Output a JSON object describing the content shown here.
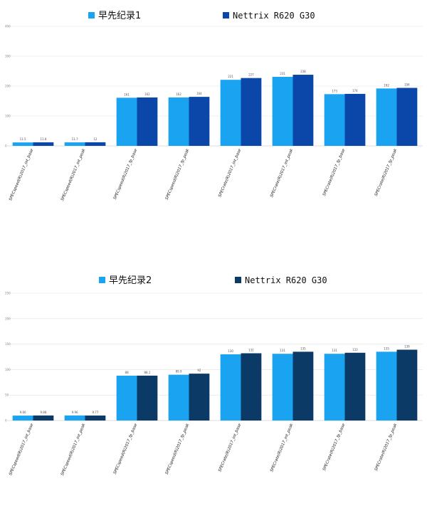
{
  "charts": [
    {
      "type": "bar",
      "categories": [
        "SPECspeed(R)2017_int_base",
        "SPECspeed(R)2017_int_peak",
        "SPECspeed(R)2017_fp_base",
        "SPECspeed(R)2017_fp_peak",
        "SPECrate(R)2017_int_base",
        "SPECrate(R)2017_int_peak",
        "SPECrate(R)2017_fp_base",
        "SPECrate(R)2017_fp_peak"
      ],
      "series": [
        {
          "name": "早先纪录1",
          "color": "#1aa3f0",
          "values": [
            11.5,
            11.7,
            161,
            162,
            221,
            231,
            173,
            192
          ],
          "labels": [
            "11.5",
            "11.7",
            "161",
            "162",
            "221",
            "231",
            "173",
            "192"
          ]
        },
        {
          "name": "Nettrix R620 G30",
          "color": "#0a47a8",
          "values": [
            11.8,
            12,
            162,
            164,
            227,
            238,
            174,
            194
          ],
          "labels": [
            "11.8",
            "12",
            "162",
            "164",
            "227",
            "238",
            "174",
            "194"
          ]
        }
      ],
      "ylim": [
        0,
        400
      ],
      "yticks": [
        0,
        100,
        200,
        300,
        400
      ],
      "ytick_labels": [
        "0",
        "100",
        "200",
        "300",
        "400"
      ],
      "legend_position": "top"
    },
    {
      "type": "bar",
      "categories": [
        "SPECspeed(R)2017_int_base",
        "SPECspeed(R)2017_int_peak",
        "SPECspeed(R)2017_fp_base",
        "SPECspeed(R)2017_fp_peak",
        "SPECrate(R)2017_int_base",
        "SPECrate(R)2017_int_peak",
        "SPECrate(R)2017_fp_base",
        "SPECrate(R)2017_fp_peak"
      ],
      "series": [
        {
          "name": "早先纪录2",
          "color": "#1aa3f0",
          "values": [
            9.66,
            9.96,
            88,
            89.9,
            130,
            131,
            131,
            135
          ],
          "labels": [
            "9.66",
            "9.96",
            "88",
            "89.9",
            "130",
            "131",
            "131",
            "135"
          ]
        },
        {
          "name": "Nettrix R620 G30",
          "color": "#0b3a66",
          "values": [
            9.88,
            9.77,
            88.1,
            92,
            132,
            135,
            133,
            139
          ],
          "labels": [
            "9.88",
            "9.77",
            "88.1",
            "92",
            "132",
            "135",
            "133",
            "139"
          ]
        }
      ],
      "ylim": [
        0,
        250
      ],
      "yticks": [
        0,
        50,
        100,
        150,
        200,
        250
      ],
      "ytick_labels": [
        "0",
        "50",
        "100",
        "150",
        "200",
        "250"
      ],
      "legend_position": "top"
    }
  ]
}
